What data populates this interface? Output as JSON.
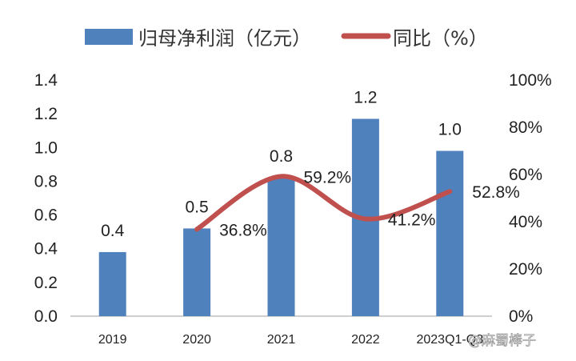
{
  "chart_data": {
    "type": "bar+line",
    "categories": [
      "2019",
      "2020",
      "2021",
      "2022",
      "2023Q1-Q3"
    ],
    "series": [
      {
        "name": "归母净利润（亿元）",
        "type": "bar",
        "axis": "left",
        "color": "#4f81bd",
        "values": [
          0.38,
          0.52,
          0.82,
          1.17,
          0.98
        ],
        "labels": [
          "0.4",
          "0.5",
          "0.8",
          "1.2",
          "1.0"
        ]
      },
      {
        "name": "同比（%）",
        "type": "line",
        "axis": "right",
        "color": "#c0504d",
        "smooth": true,
        "values": [
          null,
          36.8,
          59.2,
          41.2,
          52.8
        ],
        "labels": [
          "",
          "36.8%",
          "59.2%",
          "41.2%",
          "52.8%"
        ]
      }
    ],
    "left_axis": {
      "ylim": [
        0,
        1.4
      ],
      "ticks": [
        "0.0",
        "0.2",
        "0.4",
        "0.6",
        "0.8",
        "1.0",
        "1.2",
        "1.4"
      ]
    },
    "right_axis": {
      "ylim": [
        0,
        100
      ],
      "ticks": [
        "0%",
        "20%",
        "40%",
        "60%",
        "80%",
        "100%"
      ]
    },
    "grid": false,
    "legend": "top"
  },
  "watermark": "@麻蜀棒子"
}
